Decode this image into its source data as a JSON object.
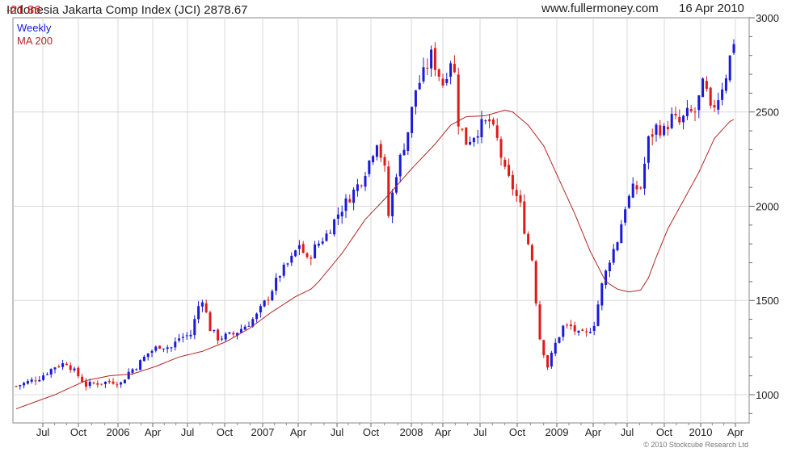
{
  "header": {
    "title": "Indonesia Jakarta Comp Index (JCI) 2878.67",
    "change": "-21.86",
    "site": "www.fullermoney.com",
    "date": "16 Apr 2010"
  },
  "chart_data": {
    "type": "candlestick",
    "legend": [
      "Weekly",
      "MA 200"
    ],
    "legend_colors": {
      "weekly": "#1a1ad8",
      "ma": "#b52525"
    },
    "colors": {
      "up": "#1a1ad8",
      "down": "#e01818",
      "ma": "#b52525",
      "grid": "#d8d8d8"
    },
    "x_tick_labels": [
      "Jul",
      "Oct",
      "2006",
      "Apr",
      "Jul",
      "Oct",
      "2007",
      "Apr",
      "Jul",
      "Oct",
      "2008",
      "Apr",
      "Jul",
      "Oct",
      "2009",
      "Apr",
      "Jul",
      "Oct",
      "2010",
      "Apr"
    ],
    "y_tick_labels": [
      "1000",
      "1500",
      "2000",
      "2500",
      "3000"
    ],
    "ylim": [
      850,
      3000
    ],
    "grid": true,
    "copyright": "© 2010 Stockcube Research Ltd",
    "close_path": [
      [
        0,
        1045
      ],
      [
        6,
        1090
      ],
      [
        10,
        1150
      ],
      [
        13,
        1170
      ],
      [
        16,
        1100
      ],
      [
        18,
        1050
      ],
      [
        20,
        1060
      ],
      [
        25,
        1070
      ],
      [
        27,
        1060
      ],
      [
        29,
        1120
      ],
      [
        31,
        1150
      ],
      [
        34,
        1220
      ],
      [
        37,
        1260
      ],
      [
        40,
        1250
      ],
      [
        42,
        1300
      ],
      [
        45,
        1320
      ],
      [
        47,
        1470
      ],
      [
        48,
        1510
      ],
      [
        50,
        1350
      ],
      [
        52,
        1300
      ],
      [
        56,
        1320
      ],
      [
        60,
        1380
      ],
      [
        62,
        1420
      ],
      [
        65,
        1520
      ],
      [
        68,
        1640
      ],
      [
        71,
        1720
      ],
      [
        73,
        1800
      ],
      [
        75,
        1710
      ],
      [
        77,
        1780
      ],
      [
        80,
        1850
      ],
      [
        83,
        1960
      ],
      [
        86,
        2050
      ],
      [
        89,
        2140
      ],
      [
        91,
        2240
      ],
      [
        93,
        2350
      ],
      [
        95,
        2190
      ],
      [
        96,
        1950
      ],
      [
        98,
        2180
      ],
      [
        101,
        2400
      ],
      [
        103,
        2620
      ],
      [
        105,
        2700
      ],
      [
        107,
        2800
      ],
      [
        108,
        2750
      ],
      [
        110,
        2650
      ],
      [
        112,
        2780
      ],
      [
        113,
        2700
      ],
      [
        114,
        2450
      ],
      [
        116,
        2340
      ],
      [
        118,
        2380
      ],
      [
        120,
        2430
      ],
      [
        122,
        2450
      ],
      [
        124,
        2350
      ],
      [
        126,
        2180
      ],
      [
        128,
        2100
      ],
      [
        130,
        2000
      ],
      [
        131,
        1880
      ],
      [
        133,
        1720
      ],
      [
        134,
        1500
      ],
      [
        135,
        1300
      ],
      [
        137,
        1150
      ],
      [
        139,
        1270
      ],
      [
        141,
        1360
      ],
      [
        143,
        1360
      ],
      [
        145,
        1320
      ],
      [
        147,
        1320
      ],
      [
        149,
        1380
      ],
      [
        151,
        1580
      ],
      [
        153,
        1720
      ],
      [
        155,
        1820
      ],
      [
        157,
        2000
      ],
      [
        159,
        2090
      ],
      [
        161,
        2100
      ],
      [
        163,
        2350
      ],
      [
        165,
        2420
      ],
      [
        167,
        2400
      ],
      [
        169,
        2470
      ],
      [
        171,
        2440
      ],
      [
        173,
        2490
      ],
      [
        175,
        2500
      ],
      [
        177,
        2640
      ],
      [
        178,
        2600
      ],
      [
        179,
        2500
      ],
      [
        181,
        2580
      ],
      [
        183,
        2700
      ],
      [
        185,
        2880
      ]
    ],
    "ma_200": [
      [
        0,
        925
      ],
      [
        10,
        1000
      ],
      [
        18,
        1075
      ],
      [
        24,
        1100
      ],
      [
        30,
        1110
      ],
      [
        36,
        1150
      ],
      [
        42,
        1200
      ],
      [
        48,
        1230
      ],
      [
        54,
        1280
      ],
      [
        60,
        1350
      ],
      [
        66,
        1440
      ],
      [
        72,
        1520
      ],
      [
        76,
        1560
      ],
      [
        78,
        1600
      ],
      [
        84,
        1750
      ],
      [
        90,
        1930
      ],
      [
        96,
        2060
      ],
      [
        102,
        2200
      ],
      [
        108,
        2330
      ],
      [
        112,
        2430
      ],
      [
        116,
        2475
      ],
      [
        121,
        2480
      ],
      [
        126,
        2510
      ],
      [
        128,
        2500
      ],
      [
        132,
        2430
      ],
      [
        136,
        2320
      ],
      [
        140,
        2140
      ],
      [
        144,
        1960
      ],
      [
        148,
        1760
      ],
      [
        152,
        1600
      ],
      [
        155,
        1560
      ],
      [
        158,
        1545
      ],
      [
        161,
        1555
      ],
      [
        163,
        1620
      ],
      [
        165,
        1730
      ],
      [
        168,
        1880
      ],
      [
        172,
        2030
      ],
      [
        176,
        2180
      ],
      [
        180,
        2360
      ],
      [
        184,
        2450
      ],
      [
        185,
        2460
      ]
    ]
  }
}
